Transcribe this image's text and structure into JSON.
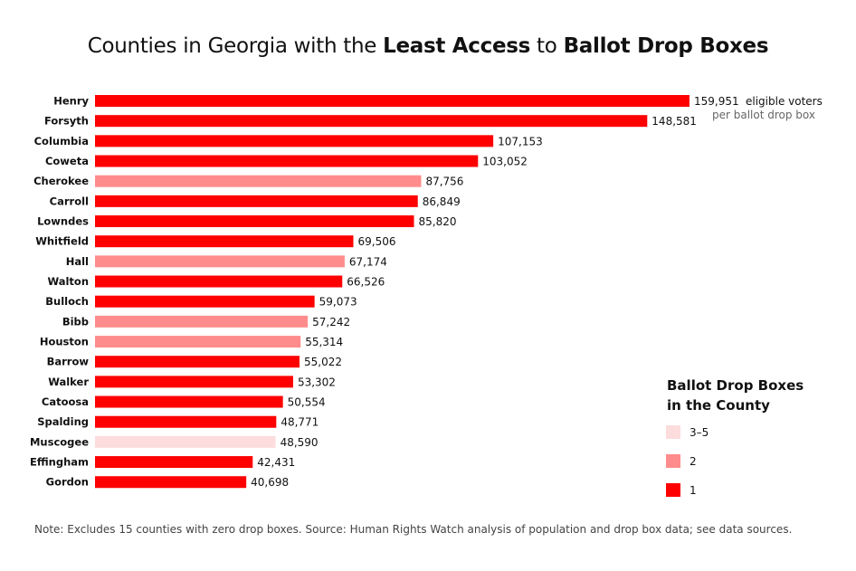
{
  "chart_data": {
    "type": "bar",
    "orientation": "horizontal",
    "title_parts": [
      "Counties in Georgia with the ",
      "Least Access",
      " to ",
      "Ballot Drop Boxes"
    ],
    "value_unit_line1": "eligible voters",
    "value_unit_line2": "per ballot drop box",
    "categories": [
      "Henry",
      "Forsyth",
      "Columbia",
      "Coweta",
      "Cherokee",
      "Carroll",
      "Lowndes",
      "Whitfield",
      "Hall",
      "Walton",
      "Bulloch",
      "Bibb",
      "Houston",
      "Barrow",
      "Walker",
      "Catoosa",
      "Spalding",
      "Muscogee",
      "Effingham",
      "Gordon"
    ],
    "values": [
      159951,
      148581,
      107153,
      103052,
      87756,
      86849,
      85820,
      69506,
      67174,
      66526,
      59073,
      57242,
      55314,
      55022,
      53302,
      50554,
      48771,
      48590,
      42431,
      40698
    ],
    "value_labels": [
      "159,951",
      "148,581",
      "107,153",
      "103,052",
      "87,756",
      "86,849",
      "85,820",
      "69,506",
      "67,174",
      "66,526",
      "59,073",
      "57,242",
      "55,314",
      "55,022",
      "53,302",
      "50,554",
      "48,771",
      "48,590",
      "42,431",
      "40,698"
    ],
    "drop_box_group": [
      "1",
      "1",
      "1",
      "1",
      "2",
      "1",
      "1",
      "1",
      "2",
      "1",
      "1",
      "2",
      "2",
      "1",
      "1",
      "1",
      "1",
      "3–5",
      "1",
      "1"
    ],
    "xlim": [
      0,
      159951
    ],
    "grid": false,
    "legend": {
      "title_line1": "Ballot Drop Boxes",
      "title_line2": "in the County",
      "placement": "bottom-right",
      "items": [
        {
          "label": "3–5",
          "color": "#fcdcdc"
        },
        {
          "label": "2",
          "color": "#ff8c8c"
        },
        {
          "label": "1",
          "color": "#ff0000"
        }
      ]
    }
  },
  "note": "Note: Excludes 15 counties with zero drop boxes. Source: Human Rights Watch analysis of population and drop box data; see data sources."
}
